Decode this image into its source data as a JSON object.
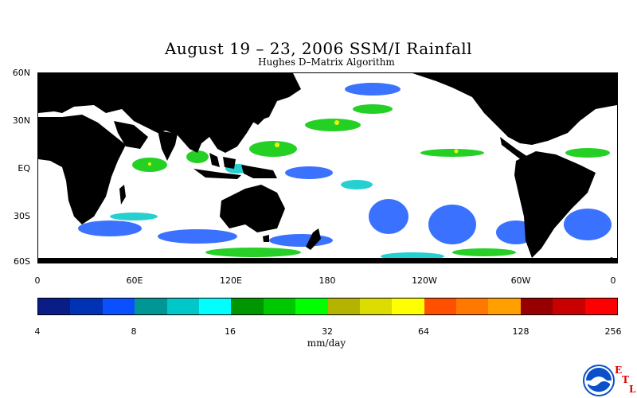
{
  "title": "August 19 – 23, 2006 SSM/I Rainfall",
  "subtitle": "Hughes D–Matrix Algorithm",
  "latitude_labels": [
    "60N",
    "30N",
    "EQ",
    "30S",
    "60S"
  ],
  "longitude_labels": [
    "0",
    "60E",
    "120E",
    "180",
    "120W",
    "60W",
    "0"
  ],
  "colorbar": {
    "units": "mm/day",
    "tick_labels": [
      "4",
      "8",
      "16",
      "32",
      "64",
      "128",
      "256"
    ],
    "colors": [
      "#0a1d87",
      "#0032b4",
      "#0a50ff",
      "#009696",
      "#00c8c8",
      "#00ffff",
      "#009600",
      "#00c800",
      "#00ff00",
      "#b4b400",
      "#dcdc00",
      "#ffff00",
      "#ff5000",
      "#ff7800",
      "#ffa000",
      "#960000",
      "#c80000",
      "#ff0000"
    ]
  },
  "logo": {
    "icon": "noaa-logo-icon",
    "mark_letters": [
      "E",
      "T",
      "L"
    ],
    "mark_color": "#e00000",
    "logo_color": "#0a50c8"
  },
  "map_colors": {
    "land": "#000000",
    "ocean": "#ffffff"
  }
}
